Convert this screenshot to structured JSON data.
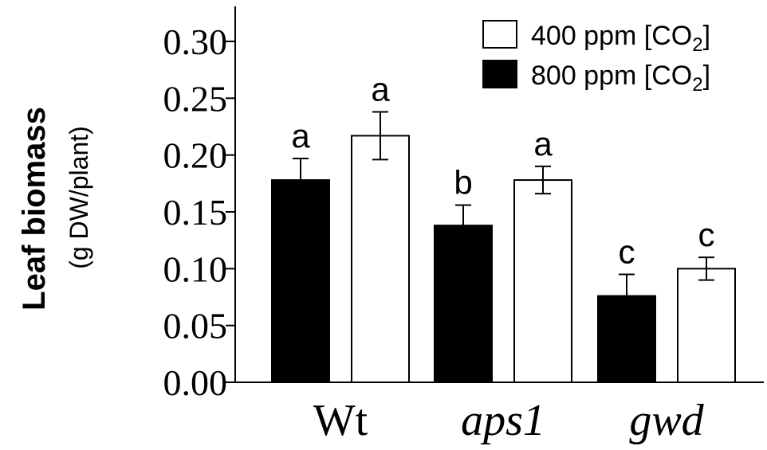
{
  "chart_data": {
    "type": "bar",
    "categories": [
      "Wt",
      "aps1",
      "gwd"
    ],
    "category_italic": [
      false,
      true,
      true
    ],
    "ylabel": "Leaf biomass",
    "ylabel_unit": "(g DW/plant)",
    "ylim": [
      0,
      0.3
    ],
    "y_ticks": [
      "0.00",
      "0.05",
      "0.10",
      "0.15",
      "0.20",
      "0.25",
      "0.30"
    ],
    "y_tick_values": [
      0,
      0.05,
      0.1,
      0.15,
      0.2,
      0.25,
      0.3
    ],
    "grid": false,
    "legend_position": "top-right",
    "series": [
      {
        "name": "800 ppm [CO2]",
        "legend_text": "800 ppm [CO",
        "legend_sub": "2",
        "legend_close": "]",
        "color": "#000000",
        "values": [
          0.178,
          0.138,
          0.076
        ],
        "errors": [
          0.019,
          0.018,
          0.019
        ],
        "sig_labels": [
          "a",
          "b",
          "c"
        ]
      },
      {
        "name": "400 ppm [CO2]",
        "legend_text": "400 ppm [CO",
        "legend_sub": "2",
        "legend_close": "]",
        "color": "#ffffff",
        "values": [
          0.217,
          0.178,
          0.1
        ],
        "errors": [
          0.021,
          0.012,
          0.01
        ],
        "sig_labels": [
          "a",
          "a",
          "c"
        ]
      }
    ]
  }
}
